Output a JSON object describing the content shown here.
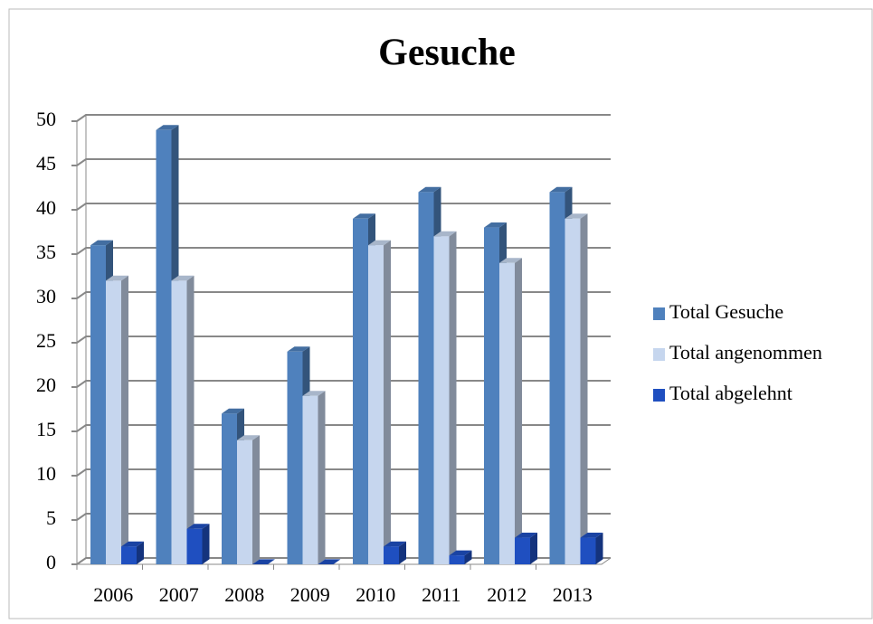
{
  "chart_data": {
    "type": "bar3d",
    "title": "Gesuche",
    "categories": [
      "2006",
      "2007",
      "2008",
      "2009",
      "2010",
      "2011",
      "2012",
      "2013"
    ],
    "series": [
      {
        "name": "Total Gesuche",
        "color": "#4f81bd",
        "values": [
          36,
          49,
          17,
          24,
          39,
          42,
          38,
          42
        ]
      },
      {
        "name": "Total angenommen",
        "color": "#c6d6ee",
        "values": [
          32,
          32,
          14,
          19,
          36,
          37,
          34,
          39
        ]
      },
      {
        "name": "Total abgelehnt",
        "color": "#1f4fc0",
        "values": [
          2,
          4,
          0,
          0,
          2,
          1,
          3,
          3
        ]
      }
    ],
    "ylim": [
      0,
      50
    ],
    "yticks": [
      0,
      5,
      10,
      15,
      20,
      25,
      30,
      35,
      40,
      45,
      50
    ],
    "grid": true,
    "legend": "right"
  }
}
